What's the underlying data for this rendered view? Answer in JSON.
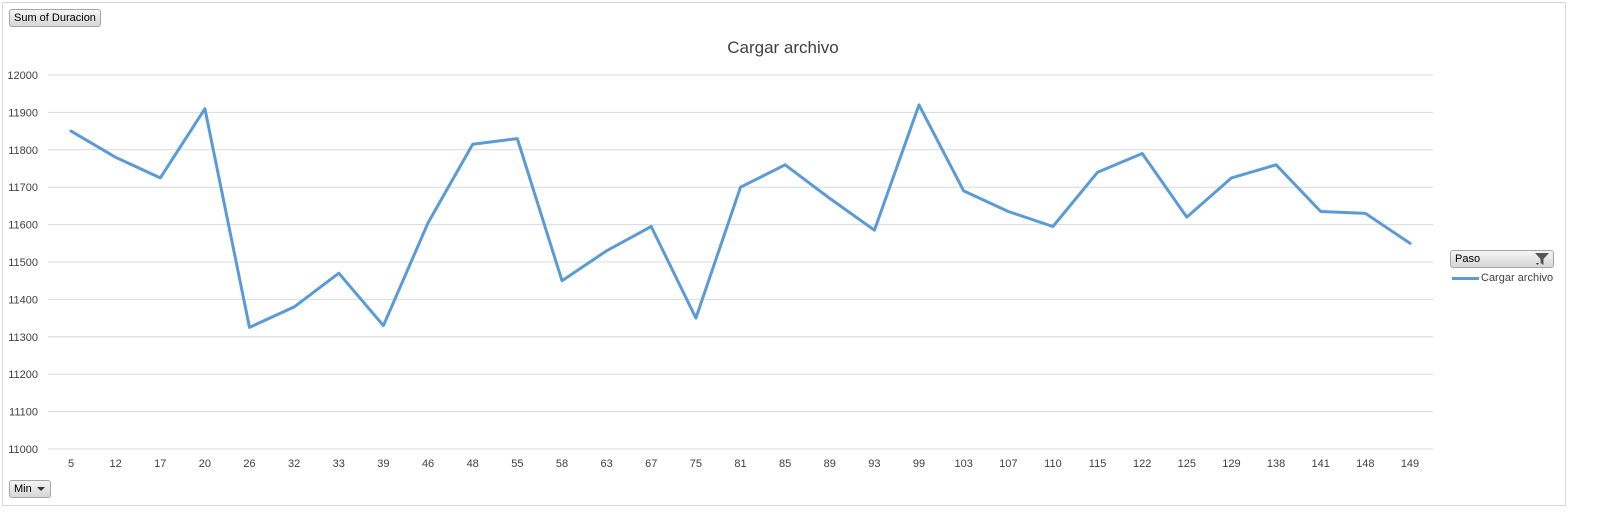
{
  "pivot_fields": {
    "value_field": "Sum of Duracion",
    "filter_field": "Min",
    "legend_field": "Paso"
  },
  "colors": {
    "series": "#5b9bd5",
    "grid": "#d9d9d9",
    "text": "#404040"
  },
  "icons": [
    "filter-icon",
    "dropdown-caret-icon"
  ],
  "chart_data": {
    "type": "line",
    "title": "Cargar archivo",
    "xlabel": "",
    "ylabel": "",
    "categories": [
      "5",
      "12",
      "17",
      "20",
      "26",
      "32",
      "33",
      "39",
      "46",
      "48",
      "55",
      "58",
      "63",
      "67",
      "75",
      "81",
      "85",
      "89",
      "93",
      "99",
      "103",
      "107",
      "110",
      "115",
      "122",
      "125",
      "129",
      "138",
      "141",
      "148",
      "149"
    ],
    "series": [
      {
        "name": "Cargar archivo",
        "values": [
          11850,
          11780,
          11725,
          11910,
          11325,
          11380,
          11470,
          11330,
          11605,
          11815,
          11830,
          11450,
          11530,
          11595,
          11350,
          11700,
          11760,
          11670,
          11585,
          11920,
          11690,
          11635,
          11595,
          11740,
          11790,
          11620,
          11725,
          11760,
          11635,
          11630,
          11550
        ]
      }
    ],
    "ylim": [
      11000,
      12000
    ],
    "yticks": [
      "11000",
      "11100",
      "11200",
      "11300",
      "11400",
      "11500",
      "11600",
      "11700",
      "11800",
      "11900",
      "12000"
    ],
    "grid": true,
    "legend_position": "right"
  }
}
